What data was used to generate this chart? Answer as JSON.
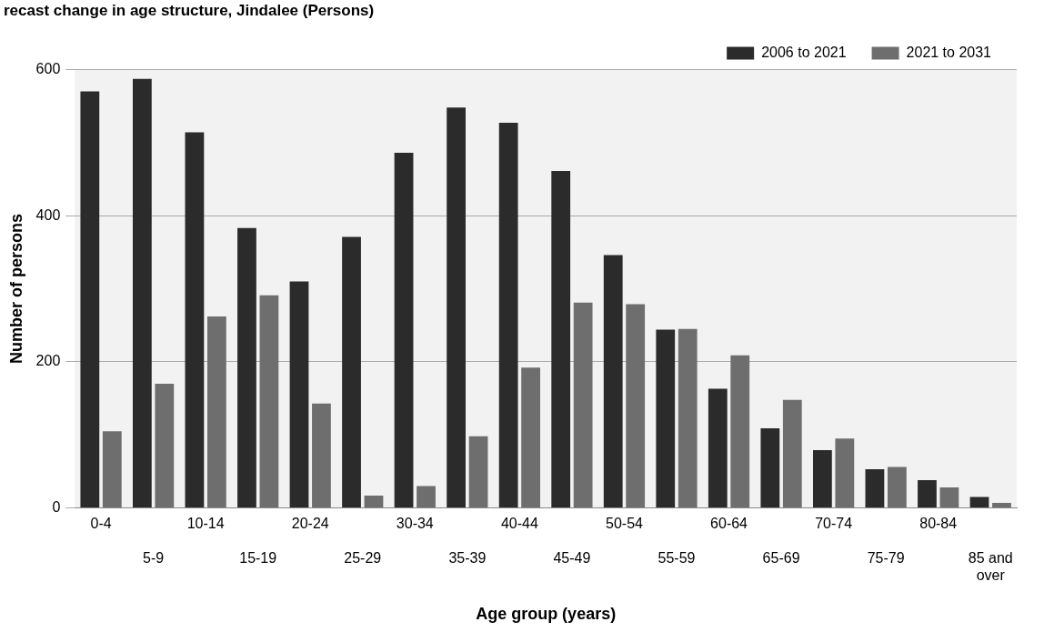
{
  "chart_data": {
    "type": "bar",
    "title": "recast change in age structure, Jindalee (Persons)",
    "xlabel": "Age group (years)",
    "ylabel": "Number of persons",
    "categories": [
      "0-4",
      "5-9",
      "10-14",
      "15-19",
      "20-24",
      "25-29",
      "30-34",
      "35-39",
      "40-44",
      "45-49",
      "50-54",
      "55-59",
      "60-64",
      "65-69",
      "70-74",
      "75-79",
      "80-84",
      "85 and over"
    ],
    "series": [
      {
        "name": "2006 to 2021",
        "color": "#2b2b2b",
        "values": [
          570,
          587,
          514,
          383,
          310,
          371,
          486,
          548,
          527,
          461,
          346,
          244,
          163,
          109,
          79,
          53,
          38,
          15
        ]
      },
      {
        "name": "2021 to 2031",
        "color": "#6e6e6e",
        "values": [
          105,
          170,
          262,
          291,
          143,
          17,
          30,
          98,
          192,
          281,
          279,
          245,
          209,
          148,
          95,
          56,
          28,
          7
        ]
      }
    ],
    "ylim": [
      0,
      600
    ],
    "yticks": [
      0,
      200,
      400,
      600
    ],
    "grid": "y",
    "legend": "top right"
  }
}
